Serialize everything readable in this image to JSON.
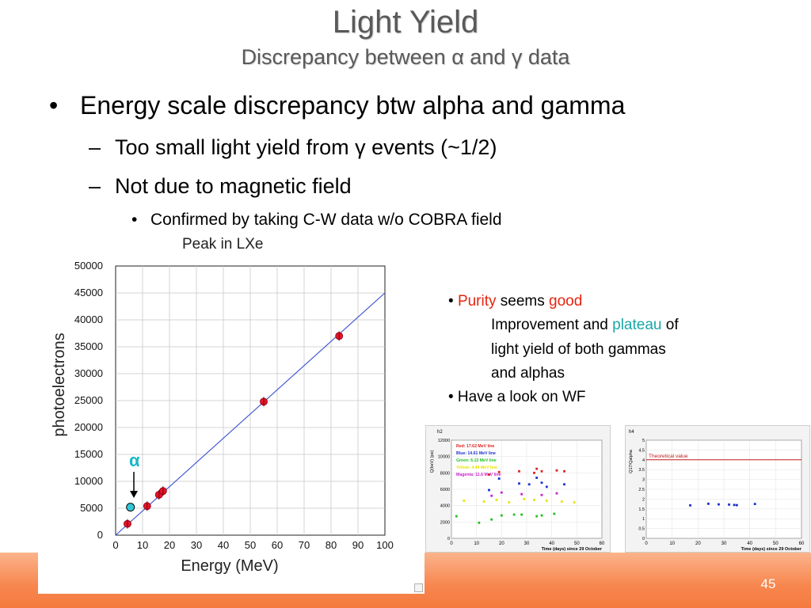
{
  "slide": {
    "title": "Light Yield",
    "subtitle": "Discrepancy between α and γ data",
    "page_number": "45"
  },
  "bullets": {
    "level1": "Energy scale discrepancy btw alpha and gamma",
    "level2_a": "Too small light yield from γ events (~1/2)",
    "level2_b": "Not due to magnetic field",
    "level3": "Confirmed by taking C-W data w/o COBRA field"
  },
  "side_notes": {
    "purity_word": "Purity",
    "seems_word": " seems ",
    "good_word": "good",
    "improvement_pre": "Improvement and ",
    "plateau_word": "plateau",
    "improvement_post": " of",
    "line2": "light yield of both gammas",
    "line3": "and alphas",
    "look": "• Have a look on WF",
    "colors": {
      "purity": "#e8230f",
      "good": "#e8230f",
      "plateau": "#1aa6a6"
    }
  },
  "main_plot": {
    "plot_title": "Peak in LXe",
    "ylabel": "photoelectrons",
    "xlabel": "Energy (MeV)",
    "alpha_label": "α",
    "x_ticks": [
      "0",
      "10",
      "20",
      "30",
      "40",
      "50",
      "60",
      "70",
      "80",
      "90",
      "100"
    ],
    "y_ticks": [
      "0",
      "5000",
      "10000",
      "15000",
      "20000",
      "25000",
      "30000",
      "35000",
      "40000",
      "45000",
      "50000"
    ],
    "colors": {
      "gamma_point": "#e4142c",
      "alpha_point": "#30c8d8",
      "fit_line": "#3a4fcf",
      "alpha_label": "#13b8c8"
    }
  },
  "chart_data": [
    {
      "type": "scatter",
      "title": "",
      "xlabel": "Energy (MeV)",
      "ylabel": "photoelectrons",
      "xlim": [
        0,
        100
      ],
      "ylim": [
        0,
        50000
      ],
      "grid": true,
      "series": [
        {
          "name": "",
          "x": [
            4.4,
            11.7,
            16.1,
            17.6,
            55.0,
            83.0
          ],
          "y": [
            2100,
            5400,
            7500,
            8200,
            24800,
            37000
          ]
        },
        {
          "name": "α",
          "x": [
            5.5
          ],
          "y": [
            5200
          ]
        }
      ],
      "fit_line": {
        "x": [
          0,
          100
        ],
        "y": [
          0,
          45000
        ]
      }
    },
    {
      "type": "scatter",
      "title": "h2",
      "xlabel": "Time (days) since 29 October",
      "ylabel": "Q(keV) (pe)",
      "xlim": [
        0,
        60
      ],
      "ylim": [
        0,
        12000
      ],
      "x_ticks": [
        "0",
        "10",
        "20",
        "30",
        "40",
        "50",
        "60"
      ],
      "y_ticks": [
        "0",
        "2000",
        "4000",
        "6000",
        "8000",
        "10000",
        "12000"
      ],
      "legend": [
        "Red: 17.62 MeV line",
        "Blue: 14.61 MeV line",
        "Green: 6.13 MeV line",
        "Yellow: 4.44 MeV line",
        "Magenta: 11.6 MeV line"
      ],
      "series": [
        {
          "name": "Red: 17.62 MeV line",
          "x": [
            15,
            19,
            27,
            33,
            34,
            36,
            42,
            45
          ],
          "y": [
            7800,
            8100,
            8200,
            8000,
            8500,
            8200,
            8300,
            8200
          ]
        },
        {
          "name": "Blue: 14.61 MeV line",
          "x": [
            15,
            19,
            27,
            31,
            34,
            36,
            38,
            45
          ],
          "y": [
            5900,
            7300,
            6700,
            6600,
            7400,
            6800,
            6300,
            6600
          ]
        },
        {
          "name": "Green: 6.13 MeV line",
          "x": [
            2,
            11,
            16,
            20,
            25,
            28,
            34,
            36,
            41
          ],
          "y": [
            2700,
            1900,
            2300,
            2800,
            2900,
            2900,
            2700,
            2800,
            3000
          ]
        },
        {
          "name": "Yellow: 4.44 MeV line",
          "x": [
            5,
            13,
            18,
            23,
            29,
            33,
            38,
            44,
            49
          ],
          "y": [
            4600,
            4500,
            4700,
            4400,
            4800,
            4700,
            4600,
            4500,
            4400
          ]
        },
        {
          "name": "Magenta: 11.6 MeV line",
          "x": [
            16,
            20,
            28,
            36,
            42
          ],
          "y": [
            5200,
            5600,
            5400,
            5300,
            5500
          ]
        }
      ]
    },
    {
      "type": "scatter",
      "title": "h4",
      "xlabel": "Time (days) since 29 October",
      "ylabel": "Q17/Qalpha",
      "xlim": [
        0,
        60
      ],
      "ylim": [
        0,
        5
      ],
      "x_ticks": [
        "0",
        "10",
        "20",
        "30",
        "40",
        "50",
        "60"
      ],
      "y_ticks": [
        "0",
        "0.5",
        "1",
        "1.5",
        "2",
        "2.5",
        "3",
        "3.5",
        "4",
        "4.5",
        "5"
      ],
      "annotation": "Theoretical value",
      "reference_line": 4,
      "series": [
        {
          "name": "",
          "x": [
            17,
            24,
            28,
            32,
            34,
            35,
            42
          ],
          "y": [
            1.68,
            1.76,
            1.73,
            1.72,
            1.7,
            1.69,
            1.75
          ]
        }
      ]
    }
  ]
}
